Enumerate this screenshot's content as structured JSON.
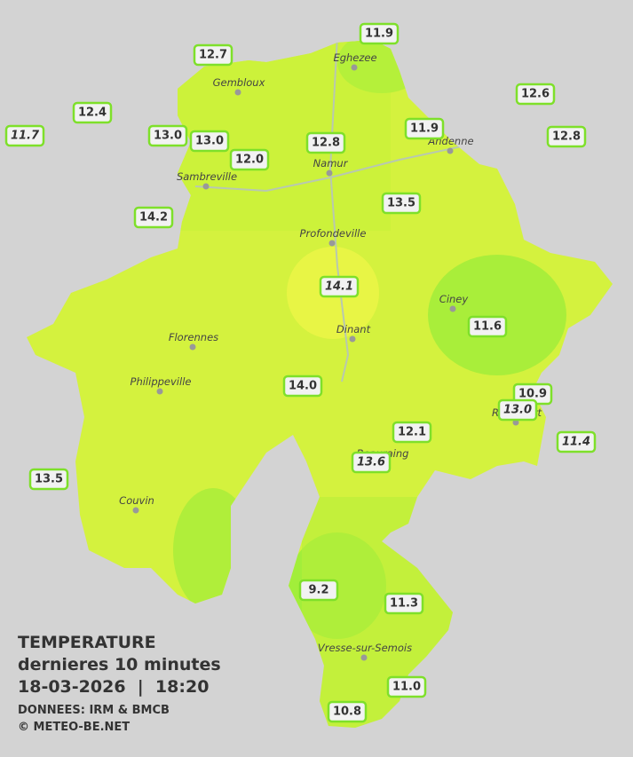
{
  "legend": {
    "title": "TEMPERATURE",
    "subtitle": "dernieres 10 minutes",
    "datetime": "18-03-2026  |  18:20",
    "source": "DONNEES: IRM & BMCB",
    "credit": "© METEO-BE.NET"
  },
  "cities": [
    "Eghezee",
    "Gembloux",
    "Andenne",
    "Namur",
    "Sambreville",
    "Profondeville",
    "Ciney",
    "Dinant",
    "Florennes",
    "Philippeville",
    "Couvin",
    "Vresse-sur-Semois",
    "Rochefort",
    "Beauraing"
  ],
  "readings": [
    "11.9",
    "12.7",
    "12.4",
    "11.7",
    "13.0",
    "13.0",
    "12.0",
    "12.8",
    "11.9",
    "12.6",
    "12.8",
    "13.5",
    "14.2",
    "14.1",
    "11.6",
    "14.0",
    "10.9",
    "13.0",
    "12.1",
    "13.6",
    "11.4",
    "13.5",
    "9.2",
    "11.3",
    "11.0",
    "10.8"
  ]
}
